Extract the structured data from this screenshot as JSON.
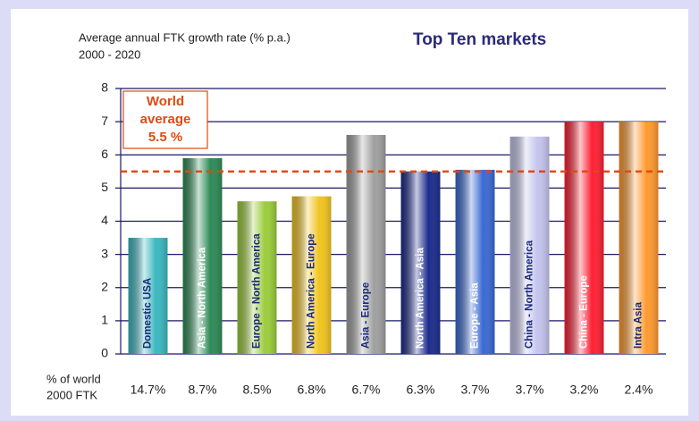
{
  "chart_data": {
    "type": "bar",
    "title": "Top Ten markets",
    "subtitle": [
      "Average annual FTK growth rate (% p.a.)",
      "2000 - 2020"
    ],
    "categories": [
      "Domestic USA",
      "Asia - North America",
      "Europe - North America",
      "North America - Europe",
      "Asia - Europe",
      "North America - Asia",
      "Europe - Asia",
      "China - North America",
      "China - Europe",
      "Intra Asia"
    ],
    "values": [
      3.5,
      5.9,
      4.6,
      4.75,
      6.6,
      5.5,
      5.55,
      6.55,
      7.0,
      7.0
    ],
    "colors": [
      "#3cb8c0",
      "#2e8b57",
      "#9ccc3c",
      "#f2c420",
      "#a0a0a0",
      "#1c2c8c",
      "#3a6ad4",
      "#c4c4ee",
      "#ff2034",
      "#ff9a30"
    ],
    "ylim": [
      0,
      8
    ],
    "yticks": [
      0,
      1,
      2,
      3,
      4,
      5,
      6,
      7,
      8
    ],
    "grid": true,
    "reference_line": {
      "value": 5.5,
      "color": "#e04a10",
      "label": [
        "World",
        "average",
        "5.5 %"
      ]
    },
    "share_title": [
      "% of world",
      "2000 FTK"
    ],
    "share_labels": [
      "14.7%",
      "8.7%",
      "8.5%",
      "6.8%",
      "6.7%",
      "6.3%",
      "3.7%",
      "3.7%",
      "3.2%",
      "2.4%"
    ]
  }
}
